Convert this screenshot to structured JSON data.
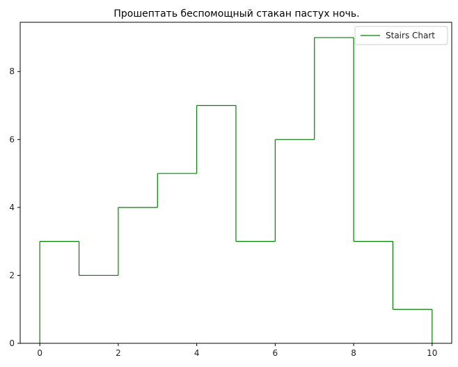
{
  "chart_data": {
    "type": "line",
    "subtype": "stairs",
    "title": "Прошептать беспомощный стакан пастух ночь.",
    "xlabel": "",
    "ylabel": "",
    "edges": [
      0,
      1,
      2,
      3,
      4,
      5,
      6,
      7,
      8,
      9,
      10
    ],
    "series": [
      {
        "name": "Stairs Chart",
        "values": [
          3,
          2,
          4,
          5,
          7,
          3,
          6,
          9,
          3,
          1
        ],
        "color": "#008000"
      }
    ],
    "xlim": [
      -0.5,
      10.5
    ],
    "ylim": [
      0,
      9.45
    ],
    "xticks": [
      0,
      2,
      4,
      6,
      8,
      10
    ],
    "yticks": [
      0,
      2,
      4,
      6,
      8
    ],
    "grid": false,
    "legend": {
      "position": "upper right"
    }
  }
}
